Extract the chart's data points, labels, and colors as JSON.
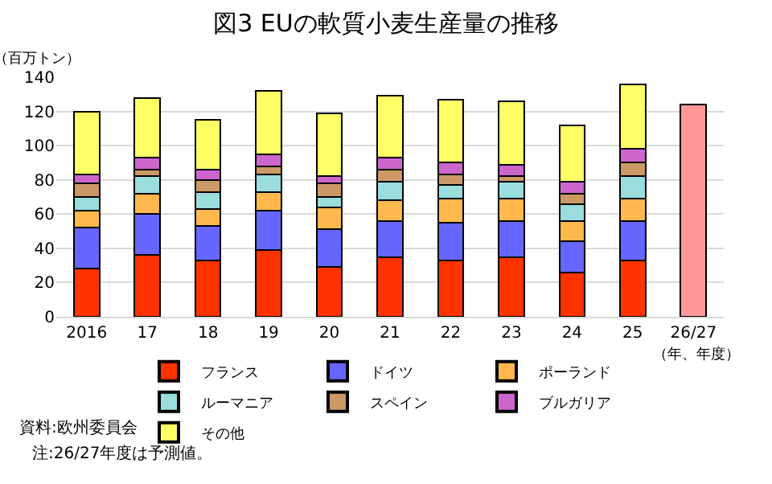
{
  "chart_data": {
    "type": "bar",
    "stacked": true,
    "title": "図3 EUの軟質小麦生産量の推移",
    "ylabel": "（百万トン）",
    "xlabel": "（年、年度）",
    "categories": [
      "2016",
      "17",
      "18",
      "19",
      "20",
      "21",
      "22",
      "23",
      "24",
      "25",
      "26/27"
    ],
    "series": [
      {
        "name": "フランス",
        "color": "#ff3300",
        "values": [
          28,
          36,
          33,
          39,
          29,
          35,
          33,
          35,
          26,
          33,
          null
        ]
      },
      {
        "name": "ドイツ",
        "color": "#6666ff",
        "values": [
          24,
          24,
          20,
          23,
          22,
          21,
          22,
          21,
          18,
          23,
          null
        ]
      },
      {
        "name": "ポーランド",
        "color": "#ffb84d",
        "values": [
          10,
          12,
          10,
          11,
          13,
          12,
          14,
          13,
          12,
          13,
          null
        ]
      },
      {
        "name": "ルーマニア",
        "color": "#99dddd",
        "values": [
          8,
          10,
          10,
          10,
          6,
          11,
          8,
          10,
          10,
          13,
          null
        ]
      },
      {
        "name": "スペイン",
        "color": "#cc9966",
        "values": [
          8,
          4,
          7,
          5,
          8,
          7,
          6,
          3,
          6,
          8,
          null
        ]
      },
      {
        "name": "ブルガリア",
        "color": "#cc66cc",
        "values": [
          5,
          7,
          6,
          7,
          4,
          7,
          7,
          7,
          7,
          8,
          null
        ]
      },
      {
        "name": "その他",
        "color": "#ffff66",
        "values": [
          37,
          35,
          29,
          37,
          37,
          36,
          37,
          37,
          33,
          38,
          null
        ]
      },
      {
        "color": "#ff9999",
        "values": [
          null,
          null,
          null,
          null,
          null,
          null,
          null,
          null,
          null,
          null,
          124
        ]
      }
    ],
    "ylim": [
      0,
      140
    ],
    "yticks": [
      0,
      20,
      40,
      60,
      80,
      100,
      120,
      140
    ],
    "grid": "y",
    "legend": "bottom",
    "annotations": [
      "資料:欧州委員会",
      "注:26/27年度は予測値。"
    ]
  }
}
